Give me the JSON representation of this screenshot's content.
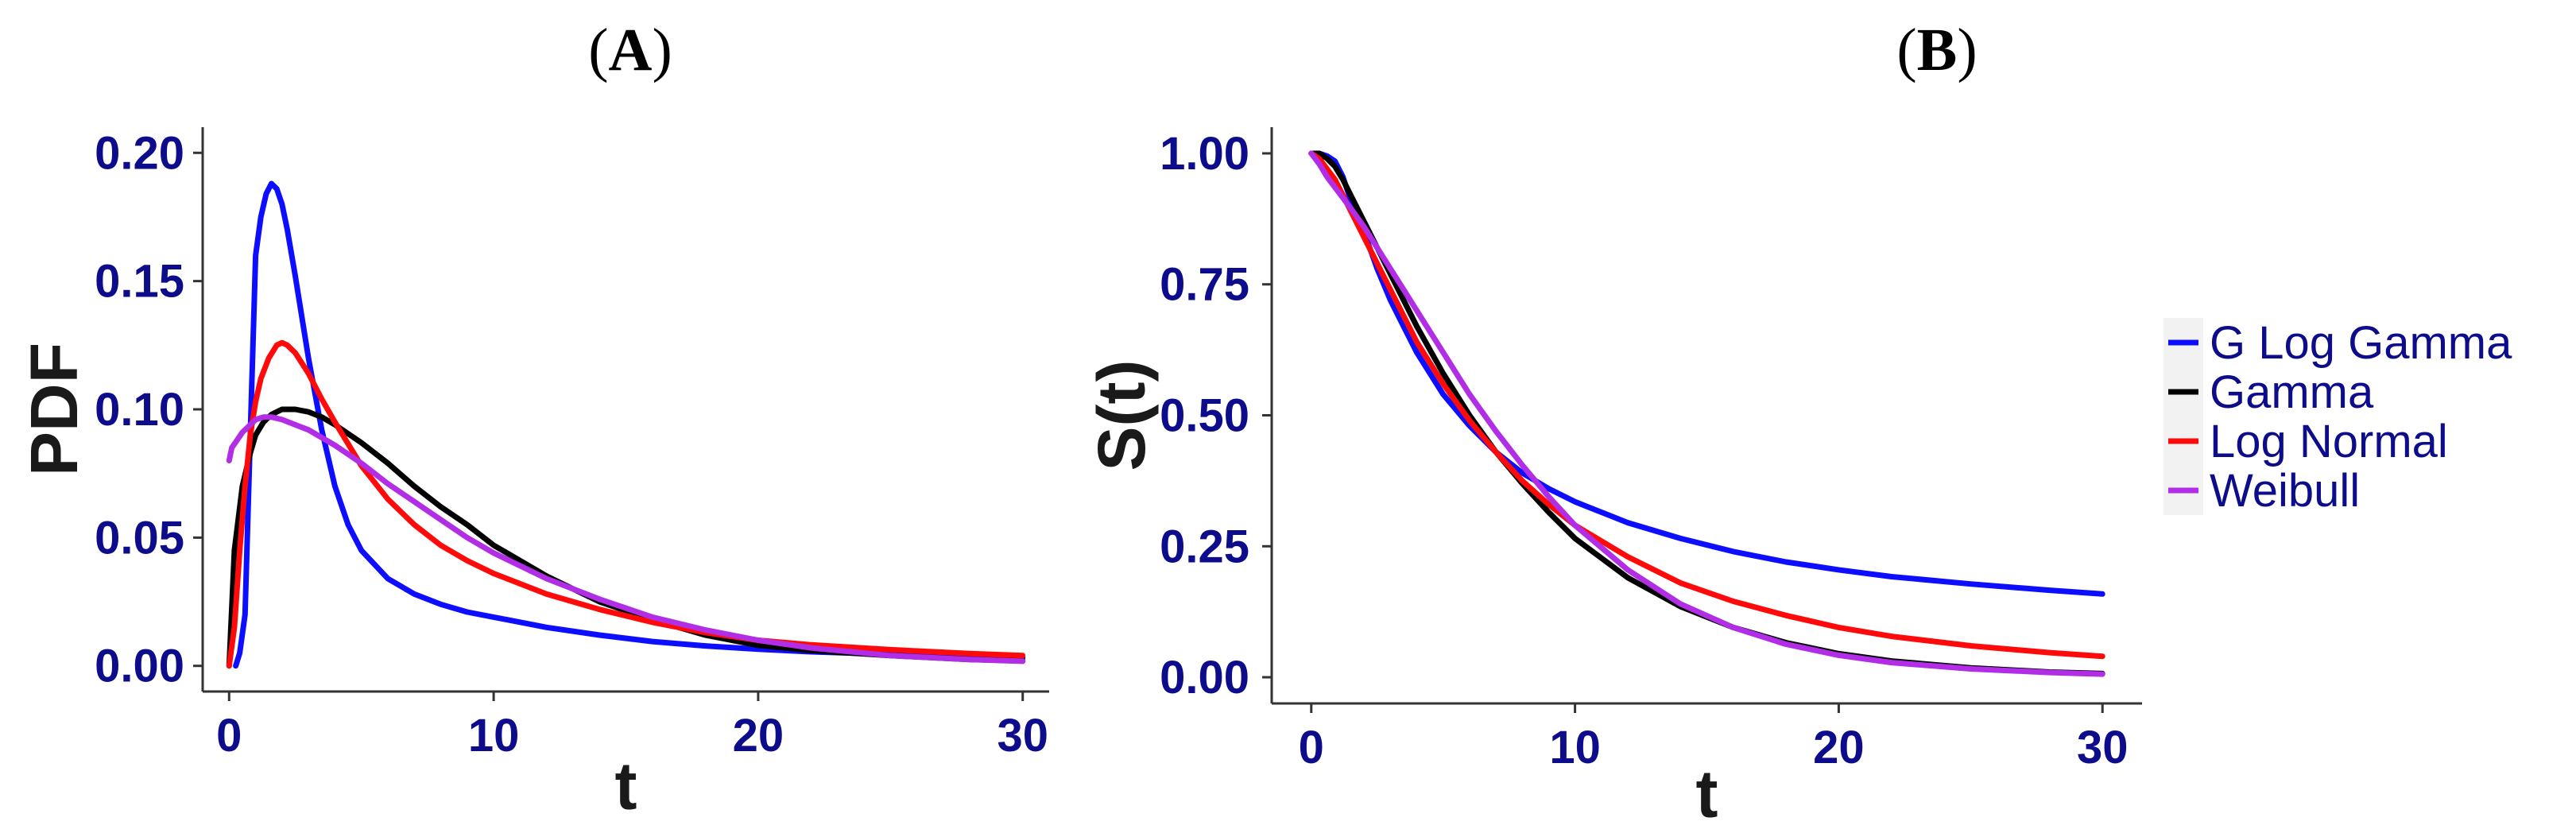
{
  "colors": {
    "tick_text": "#0d0d8c",
    "axis_line": "#333333",
    "legend_key_bg": "#f2f2f2"
  },
  "legend": {
    "position": "right",
    "items": [
      {
        "label": "G Log Gamma",
        "color": "#0d0dff"
      },
      {
        "label": "Gamma",
        "color": "#000000"
      },
      {
        "label": "Log Normal",
        "color": "#ff0a0a"
      },
      {
        "label": "Weibull",
        "color": "#b22ee6"
      }
    ]
  },
  "chart_data": [
    {
      "panel_label": "A",
      "type": "line",
      "title": "",
      "xlabel": "t",
      "ylabel": "PDF",
      "xlim": [
        -1,
        31
      ],
      "ylim": [
        -0.01,
        0.21
      ],
      "xticks": [
        0,
        10,
        20,
        30
      ],
      "xtick_labels": [
        "0",
        "10",
        "20",
        "30"
      ],
      "yticks": [
        0,
        0.05,
        0.1,
        0.15,
        0.2
      ],
      "ytick_labels": [
        "0.00",
        "0.05",
        "0.10",
        "0.15",
        "0.20"
      ],
      "grid": false,
      "series": [
        {
          "name": "G Log Gamma",
          "x": [
            0.25,
            0.4,
            0.6,
            0.8,
            1.0,
            1.2,
            1.4,
            1.6,
            1.8,
            2.0,
            2.2,
            2.5,
            3.0,
            3.5,
            4,
            4.5,
            5,
            6,
            7,
            8,
            9,
            10,
            12,
            14,
            16,
            18,
            20,
            22,
            25,
            28,
            30
          ],
          "y": [
            0.0,
            0.005,
            0.02,
            0.09,
            0.16,
            0.175,
            0.184,
            0.188,
            0.186,
            0.18,
            0.17,
            0.152,
            0.12,
            0.092,
            0.07,
            0.055,
            0.045,
            0.034,
            0.028,
            0.024,
            0.021,
            0.019,
            0.015,
            0.012,
            0.0095,
            0.0078,
            0.0065,
            0.0055,
            0.0045,
            0.0036,
            0.0032
          ]
        },
        {
          "name": "Gamma",
          "x": [
            0,
            0.2,
            0.5,
            0.8,
            1.0,
            1.3,
            1.6,
            2.0,
            2.5,
            3.0,
            3.5,
            4,
            5,
            6,
            7,
            8,
            9,
            10,
            12,
            14,
            16,
            18,
            20,
            22,
            25,
            28,
            30
          ],
          "y": [
            0.0,
            0.045,
            0.07,
            0.083,
            0.09,
            0.095,
            0.098,
            0.1,
            0.1,
            0.099,
            0.097,
            0.094,
            0.087,
            0.079,
            0.07,
            0.062,
            0.055,
            0.047,
            0.035,
            0.025,
            0.018,
            0.012,
            0.008,
            0.006,
            0.004,
            0.0025,
            0.002
          ]
        },
        {
          "name": "Log Normal",
          "x": [
            0,
            0.2,
            0.4,
            0.6,
            0.8,
            1.0,
            1.2,
            1.5,
            1.8,
            2.0,
            2.2,
            2.5,
            3.0,
            3.5,
            4,
            5,
            6,
            7,
            8,
            9,
            10,
            12,
            14,
            16,
            18,
            20,
            22,
            25,
            28,
            30
          ],
          "y": [
            0.0,
            0.015,
            0.045,
            0.07,
            0.09,
            0.103,
            0.112,
            0.12,
            0.125,
            0.126,
            0.125,
            0.122,
            0.114,
            0.104,
            0.095,
            0.078,
            0.065,
            0.055,
            0.047,
            0.041,
            0.036,
            0.028,
            0.022,
            0.017,
            0.013,
            0.01,
            0.0082,
            0.0063,
            0.0048,
            0.004
          ]
        },
        {
          "name": "Weibull",
          "x": [
            0,
            0.1,
            0.3,
            0.5,
            0.8,
            1.0,
            1.3,
            1.6,
            2.0,
            2.5,
            3,
            4,
            5,
            6,
            7,
            8,
            9,
            10,
            12,
            14,
            16,
            18,
            20,
            22,
            25,
            28,
            30
          ],
          "y": [
            0.08,
            0.085,
            0.088,
            0.091,
            0.094,
            0.096,
            0.097,
            0.097,
            0.096,
            0.094,
            0.092,
            0.086,
            0.079,
            0.071,
            0.064,
            0.057,
            0.05,
            0.044,
            0.034,
            0.026,
            0.019,
            0.014,
            0.01,
            0.007,
            0.004,
            0.0025,
            0.0018
          ]
        }
      ]
    },
    {
      "panel_label": "B",
      "type": "line",
      "title": "",
      "xlabel": "t",
      "ylabel": "S(t)",
      "xlim": [
        -1.5,
        31.5
      ],
      "ylim": [
        -0.05,
        1.05
      ],
      "xticks": [
        0,
        10,
        20,
        30
      ],
      "xtick_labels": [
        "0",
        "10",
        "20",
        "30"
      ],
      "yticks": [
        0,
        0.25,
        0.5,
        0.75,
        1.0
      ],
      "ytick_labels": [
        "0.00",
        "0.25",
        "0.50",
        "0.75",
        "1.00"
      ],
      "grid": false,
      "series": [
        {
          "name": "G Log Gamma",
          "x": [
            0,
            0.3,
            0.6,
            0.9,
            1.2,
            1.5,
            2,
            2.5,
            3,
            3.5,
            4,
            5,
            6,
            7,
            8,
            9,
            10,
            12,
            14,
            16,
            18,
            20,
            22,
            25,
            28,
            30
          ],
          "y": [
            1.0,
            1.0,
            0.995,
            0.985,
            0.955,
            0.91,
            0.85,
            0.78,
            0.72,
            0.67,
            0.62,
            0.54,
            0.48,
            0.43,
            0.39,
            0.36,
            0.335,
            0.295,
            0.265,
            0.24,
            0.22,
            0.205,
            0.192,
            0.178,
            0.166,
            0.159
          ]
        },
        {
          "name": "Gamma",
          "x": [
            0,
            0.3,
            0.6,
            0.9,
            1.2,
            1.5,
            2,
            2.5,
            3,
            3.5,
            4,
            5,
            6,
            7,
            8,
            9,
            10,
            12,
            14,
            16,
            18,
            20,
            22,
            25,
            28,
            30
          ],
          "y": [
            1.0,
            1.0,
            0.99,
            0.975,
            0.95,
            0.92,
            0.87,
            0.82,
            0.77,
            0.72,
            0.67,
            0.58,
            0.5,
            0.43,
            0.37,
            0.315,
            0.265,
            0.19,
            0.135,
            0.095,
            0.066,
            0.045,
            0.031,
            0.018,
            0.01,
            0.007
          ]
        },
        {
          "name": "Log Normal",
          "x": [
            0,
            0.3,
            0.6,
            0.9,
            1.2,
            1.5,
            2,
            2.5,
            3,
            3.5,
            4,
            5,
            6,
            7,
            8,
            9,
            10,
            12,
            14,
            16,
            18,
            20,
            22,
            25,
            28,
            30
          ],
          "y": [
            1.0,
            0.99,
            0.97,
            0.95,
            0.92,
            0.89,
            0.84,
            0.79,
            0.74,
            0.69,
            0.64,
            0.56,
            0.49,
            0.43,
            0.375,
            0.33,
            0.29,
            0.23,
            0.18,
            0.145,
            0.118,
            0.095,
            0.078,
            0.06,
            0.047,
            0.04
          ]
        },
        {
          "name": "Weibull",
          "x": [
            0,
            0.3,
            0.6,
            0.9,
            1.2,
            1.5,
            2,
            2.5,
            3,
            3.5,
            4,
            5,
            6,
            7,
            8,
            9,
            10,
            12,
            14,
            16,
            18,
            20,
            22,
            25,
            28,
            30
          ],
          "y": [
            1.0,
            0.98,
            0.955,
            0.935,
            0.915,
            0.895,
            0.86,
            0.82,
            0.78,
            0.74,
            0.7,
            0.62,
            0.54,
            0.47,
            0.405,
            0.345,
            0.29,
            0.205,
            0.14,
            0.095,
            0.063,
            0.042,
            0.028,
            0.016,
            0.009,
            0.006
          ]
        }
      ]
    }
  ]
}
